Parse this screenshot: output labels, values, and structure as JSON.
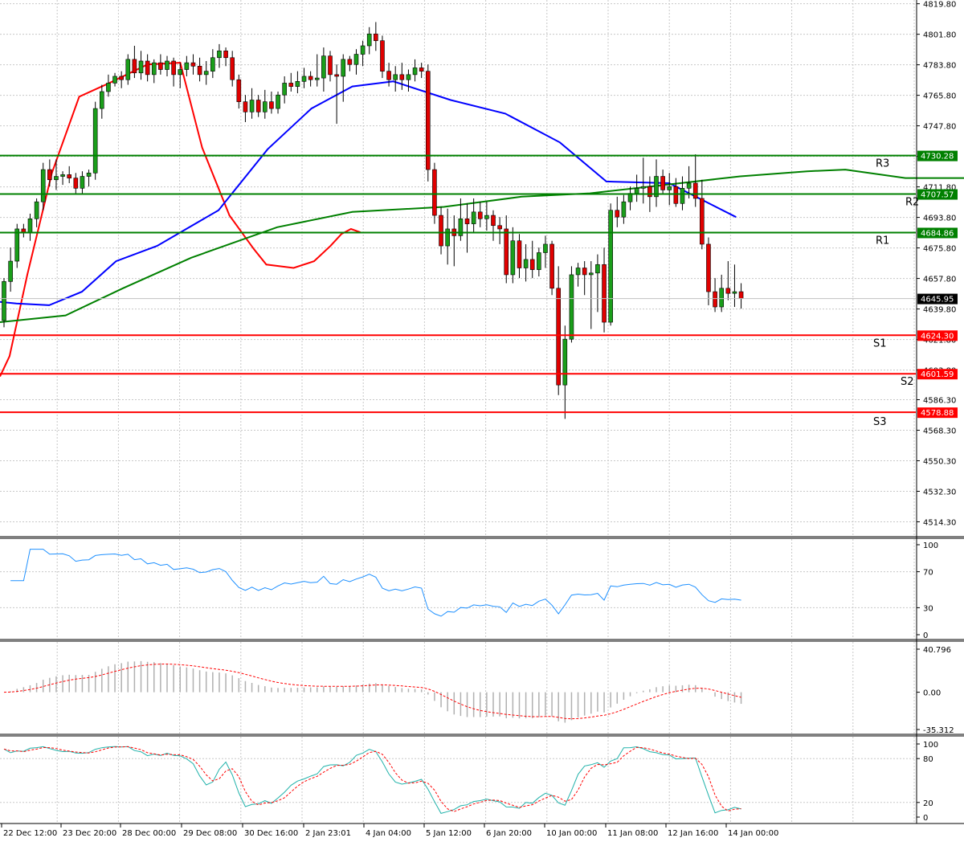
{
  "chart_data": {
    "type": "candlestick",
    "price_axis": {
      "ylim": [
        4506,
        4822
      ],
      "ticks": [
        "4819.80",
        "4801.80",
        "4783.80",
        "4765.80",
        "4747.80",
        "4729.80",
        "4711.80",
        "4693.80",
        "4675.80",
        "4657.80",
        "4639.80",
        "4621.80",
        "4603.80",
        "4586.30",
        "4568.30",
        "4550.30",
        "4532.30",
        "4514.30"
      ]
    },
    "time_axis": {
      "labels": [
        "22 Dec 12:00",
        "23 Dec 20:00",
        "28 Dec 00:00",
        "29 Dec 08:00",
        "30 Dec 16:00",
        "2 Jan 23:01",
        "4 Jan 04:00",
        "5 Jan 12:00",
        "6 Jan 20:00",
        "10 Jan 00:00",
        "11 Jan 08:00",
        "12 Jan 16:00",
        "14 Jan 00:00"
      ]
    },
    "current_price": {
      "value": 4645.95,
      "label": "4645.95"
    },
    "levels": [
      {
        "name": "R3",
        "value": 4730.28,
        "label": "4730.28",
        "color": "#008000"
      },
      {
        "name": "R2",
        "value": 4707.57,
        "label": "4707.57",
        "color": "#008000"
      },
      {
        "name": "R1",
        "value": 4684.86,
        "label": "4684.86",
        "color": "#008000"
      },
      {
        "name": "S1",
        "value": 4624.3,
        "label": "4624.30",
        "color": "#ff0000"
      },
      {
        "name": "S2",
        "value": 4601.59,
        "label": "4601.59",
        "color": "#ff0000"
      },
      {
        "name": "S3",
        "value": 4578.88,
        "label": "4578.88",
        "color": "#ff0000"
      }
    ],
    "candles": [
      [
        4633,
        4658,
        4629,
        4656
      ],
      [
        4656,
        4676,
        4650,
        4668
      ],
      [
        4668,
        4690,
        4664,
        4687
      ],
      [
        4687,
        4690,
        4682,
        4685
      ],
      [
        4685,
        4696,
        4680,
        4693
      ],
      [
        4693,
        4705,
        4688,
        4703
      ],
      [
        4703,
        4726,
        4698,
        4722
      ],
      [
        4722,
        4728,
        4712,
        4716
      ],
      [
        4716,
        4728,
        4710,
        4718
      ],
      [
        4718,
        4721,
        4713,
        4719
      ],
      [
        4719,
        4724,
        4714,
        4717
      ],
      [
        4717,
        4720,
        4708,
        4711
      ],
      [
        4711,
        4721,
        4708,
        4718
      ],
      [
        4718,
        4722,
        4712,
        4720
      ],
      [
        4720,
        4762,
        4716,
        4758
      ],
      [
        4758,
        4772,
        4752,
        4768
      ],
      [
        4768,
        4778,
        4765,
        4773
      ],
      [
        4773,
        4779,
        4771,
        4777
      ],
      [
        4777,
        4780,
        4770,
        4775
      ],
      [
        4775,
        4790,
        4772,
        4787
      ],
      [
        4787,
        4795,
        4776,
        4779
      ],
      [
        4779,
        4792,
        4775,
        4786
      ],
      [
        4786,
        4790,
        4774,
        4778
      ],
      [
        4778,
        4787,
        4773,
        4785
      ],
      [
        4785,
        4790,
        4778,
        4781
      ],
      [
        4781,
        4789,
        4777,
        4786
      ],
      [
        4786,
        4788,
        4771,
        4778
      ],
      [
        4778,
        4785,
        4770,
        4781
      ],
      [
        4781,
        4789,
        4777,
        4785
      ],
      [
        4785,
        4790,
        4778,
        4783
      ],
      [
        4783,
        4788,
        4774,
        4778
      ],
      [
        4778,
        4786,
        4772,
        4780
      ],
      [
        4780,
        4793,
        4776,
        4788
      ],
      [
        4788,
        4796,
        4782,
        4792
      ],
      [
        4792,
        4794,
        4783,
        4788
      ],
      [
        4788,
        4792,
        4771,
        4775
      ],
      [
        4775,
        4778,
        4758,
        4762
      ],
      [
        4762,
        4766,
        4750,
        4756
      ],
      [
        4756,
        4770,
        4752,
        4763
      ],
      [
        4763,
        4766,
        4753,
        4756
      ],
      [
        4756,
        4769,
        4752,
        4762
      ],
      [
        4762,
        4768,
        4755,
        4758
      ],
      [
        4758,
        4768,
        4755,
        4766
      ],
      [
        4766,
        4777,
        4761,
        4773
      ],
      [
        4773,
        4779,
        4768,
        4771
      ],
      [
        4771,
        4780,
        4767,
        4774
      ],
      [
        4774,
        4782,
        4770,
        4777
      ],
      [
        4777,
        4780,
        4771,
        4775
      ],
      [
        4775,
        4790,
        4771,
        4776
      ],
      [
        4776,
        4794,
        4768,
        4789
      ],
      [
        4789,
        4792,
        4774,
        4778
      ],
      [
        4778,
        4784,
        4749,
        4777
      ],
      [
        4777,
        4790,
        4762,
        4787
      ],
      [
        4787,
        4789,
        4780,
        4784
      ],
      [
        4784,
        4793,
        4778,
        4790
      ],
      [
        4790,
        4798,
        4783,
        4795
      ],
      [
        4795,
        4806,
        4790,
        4802
      ],
      [
        4802,
        4809,
        4792,
        4798
      ],
      [
        4798,
        4801,
        4776,
        4780
      ],
      [
        4780,
        4785,
        4771,
        4775
      ],
      [
        4775,
        4783,
        4768,
        4778
      ],
      [
        4778,
        4785,
        4769,
        4775
      ],
      [
        4775,
        4781,
        4768,
        4778
      ],
      [
        4778,
        4787,
        4774,
        4782
      ],
      [
        4782,
        4785,
        4776,
        4780
      ],
      [
        4780,
        4784,
        4715,
        4722
      ],
      [
        4722,
        4726,
        4690,
        4695
      ],
      [
        4695,
        4700,
        4672,
        4677
      ],
      [
        4677,
        4699,
        4666,
        4687
      ],
      [
        4687,
        4695,
        4665,
        4683
      ],
      [
        4683,
        4705,
        4680,
        4693
      ],
      [
        4693,
        4702,
        4673,
        4690
      ],
      [
        4690,
        4705,
        4685,
        4697
      ],
      [
        4697,
        4703,
        4688,
        4693
      ],
      [
        4693,
        4703,
        4686,
        4695
      ],
      [
        4695,
        4698,
        4680,
        4689
      ],
      [
        4689,
        4694,
        4678,
        4687
      ],
      [
        4687,
        4695,
        4655,
        4660
      ],
      [
        4660,
        4688,
        4655,
        4680
      ],
      [
        4680,
        4684,
        4658,
        4664
      ],
      [
        4664,
        4678,
        4656,
        4669
      ],
      [
        4669,
        4680,
        4658,
        4663
      ],
      [
        4663,
        4676,
        4659,
        4673
      ],
      [
        4673,
        4683,
        4664,
        4678
      ],
      [
        4678,
        4680,
        4648,
        4652
      ],
      [
        4652,
        4665,
        4589,
        4595
      ],
      [
        4595,
        4630,
        4575,
        4622
      ],
      [
        4622,
        4665,
        4620,
        4660
      ],
      [
        4660,
        4667,
        4653,
        4664
      ],
      [
        4664,
        4668,
        4648,
        4660
      ],
      [
        4660,
        4668,
        4628,
        4661
      ],
      [
        4661,
        4672,
        4638,
        4666
      ],
      [
        4666,
        4676,
        4626,
        4632
      ],
      [
        4632,
        4702,
        4630,
        4698
      ],
      [
        4698,
        4706,
        4688,
        4694
      ],
      [
        4694,
        4707,
        4690,
        4703
      ],
      [
        4703,
        4712,
        4698,
        4708
      ],
      [
        4708,
        4719,
        4703,
        4711
      ],
      [
        4711,
        4729,
        4702,
        4712
      ],
      [
        4712,
        4718,
        4697,
        4706
      ],
      [
        4706,
        4728,
        4700,
        4718
      ],
      [
        4718,
        4722,
        4708,
        4710
      ],
      [
        4710,
        4720,
        4701,
        4712
      ],
      [
        4712,
        4717,
        4700,
        4702
      ],
      [
        4702,
        4718,
        4698,
        4711
      ],
      [
        4711,
        4724,
        4705,
        4714
      ],
      [
        4714,
        4731,
        4700,
        4705
      ],
      [
        4705,
        4716,
        4675,
        4678
      ],
      [
        4678,
        4682,
        4642,
        4650
      ],
      [
        4650,
        4658,
        4638,
        4641
      ],
      [
        4641,
        4660,
        4638,
        4652
      ],
      [
        4652,
        4668,
        4645,
        4649
      ],
      [
        4649,
        4666,
        4641,
        4650
      ],
      [
        4650,
        4655,
        4640,
        4645.95
      ]
    ],
    "moving_averages": [
      {
        "color": "#ff0000",
        "points": [
          [
            0,
            4600
          ],
          [
            7,
            4612
          ],
          [
            20,
            4660
          ],
          [
            38,
            4720
          ],
          [
            58,
            4765
          ],
          [
            80,
            4773
          ],
          [
            108,
            4784
          ],
          [
            132,
            4785
          ],
          [
            148,
            4735
          ],
          [
            168,
            4695
          ],
          [
            186,
            4675
          ],
          [
            195,
            4666
          ],
          [
            215,
            4664
          ],
          [
            230,
            4668
          ],
          [
            242,
            4677
          ],
          [
            250,
            4684
          ],
          [
            257,
            4687
          ],
          [
            264,
            4685
          ]
        ]
      },
      {
        "color": "#0000ff",
        "points": [
          [
            0,
            4644
          ],
          [
            12,
            4643
          ],
          [
            36,
            4642
          ],
          [
            60,
            4650
          ],
          [
            85,
            4668
          ],
          [
            115,
            4677
          ],
          [
            160,
            4698
          ],
          [
            196,
            4734
          ],
          [
            228,
            4758
          ],
          [
            258,
            4771
          ],
          [
            288,
            4774
          ],
          [
            330,
            4763
          ],
          [
            370,
            4755
          ],
          [
            410,
            4738
          ],
          [
            444,
            4715
          ],
          [
            490,
            4714
          ],
          [
            539,
            4694
          ]
        ]
      },
      {
        "color": "#008000",
        "points": [
          [
            0,
            4632
          ],
          [
            48,
            4636
          ],
          [
            90,
            4652
          ],
          [
            140,
            4670
          ],
          [
            203,
            4688
          ],
          [
            258,
            4697
          ],
          [
            325,
            4700
          ],
          [
            382,
            4706
          ],
          [
            432,
            4708
          ],
          [
            487,
            4713
          ],
          [
            542,
            4718
          ],
          [
            591,
            4721
          ],
          [
            619,
            4722
          ],
          [
            663,
            4717
          ],
          [
            706,
            4717
          ],
          [
            764,
            4722
          ],
          [
            789,
            4732
          ],
          [
            828,
            4738
          ],
          [
            872,
            4743
          ],
          [
            935,
            4742
          ]
        ]
      }
    ],
    "rsi": {
      "ylim": [
        0,
        100
      ],
      "ticks": [
        "100",
        "70",
        "30",
        "0"
      ]
    },
    "macd": {
      "ylim": [
        -35.312,
        40.796
      ],
      "ticks": [
        "40.796",
        "0.00",
        "-35.312"
      ]
    },
    "stochastic": {
      "ylim": [
        0,
        100
      ],
      "ticks": [
        "100",
        "80",
        "20",
        "0"
      ]
    }
  }
}
